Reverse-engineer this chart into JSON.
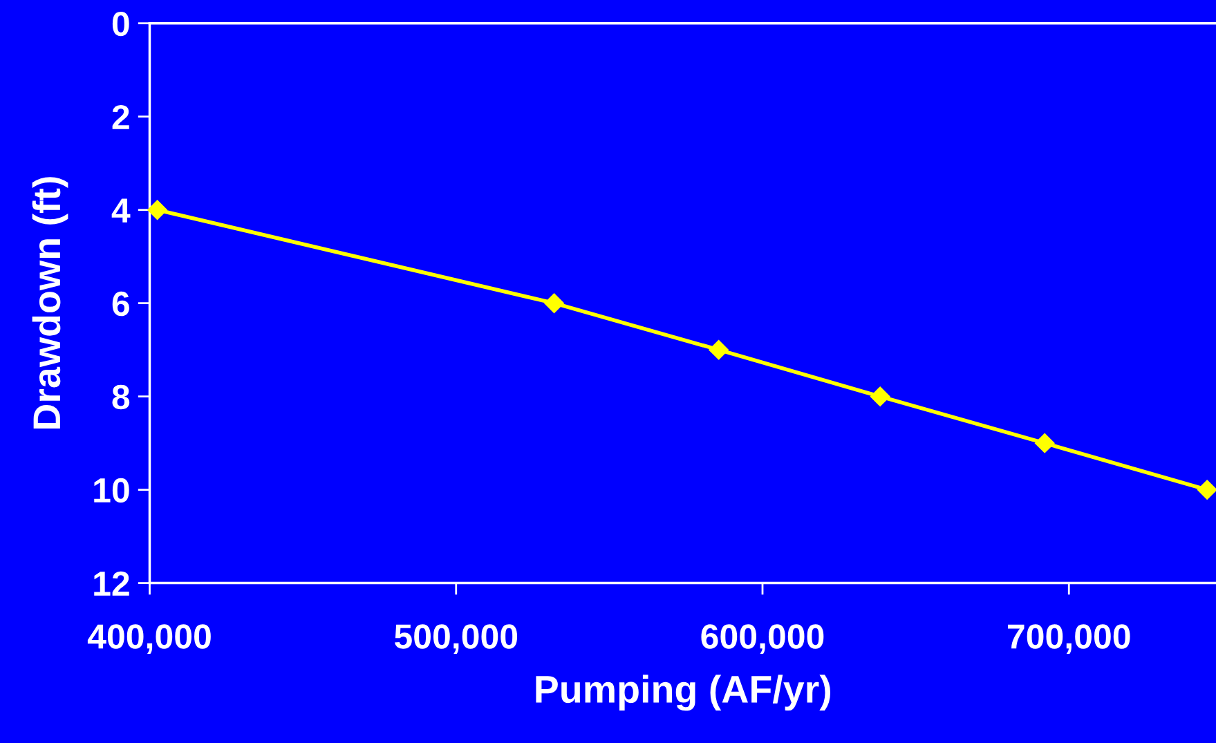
{
  "chart_data": {
    "type": "line",
    "xlabel": "Pumping (AF/yr)",
    "ylabel": "Drawdown (ft)",
    "x": [
      402500,
      532000,
      585700,
      638400,
      692100,
      745100
    ],
    "series": [
      {
        "color": "#ffff00",
        "values": [
          4,
          6,
          7,
          8,
          9,
          10
        ]
      }
    ],
    "xlim": [
      400000,
      748000
    ],
    "xticks": [
      {
        "value": 400000,
        "label": "400,000"
      },
      {
        "value": 500000,
        "label": "500,000"
      },
      {
        "value": 600000,
        "label": "600,000"
      },
      {
        "value": 700000,
        "label": "700,000"
      }
    ],
    "ylim": [
      12,
      0
    ],
    "yticks": [
      0,
      2,
      4,
      6,
      8,
      10,
      12
    ],
    "marker": "diamond",
    "line_style": "solid",
    "grid": false,
    "legend": false
  }
}
